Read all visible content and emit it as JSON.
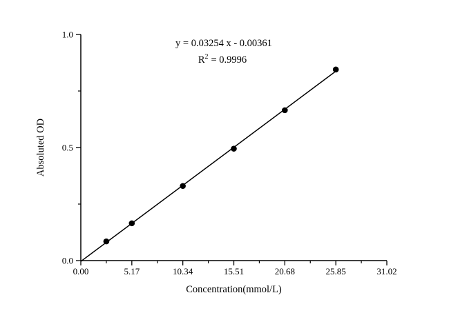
{
  "chart_data": {
    "type": "scatter",
    "title": "",
    "xlabel": "Concentration(mmol/L)",
    "ylabel": "Absoluted OD",
    "xlim": [
      0,
      31.02
    ],
    "ylim": [
      0,
      1.0
    ],
    "grid": false,
    "legend": "none",
    "x_ticks": [
      0.0,
      5.17,
      10.34,
      15.51,
      20.68,
      25.85,
      31.02
    ],
    "x_tick_labels": [
      "0.00",
      "5.17",
      "10.34",
      "15.51",
      "20.68",
      "25.85",
      "31.02"
    ],
    "x_minor_ticks": [
      2.585,
      7.755,
      12.925,
      18.095,
      23.265,
      28.435
    ],
    "y_ticks": [
      0.0,
      0.5,
      1.0
    ],
    "y_tick_labels": [
      "0.0",
      "0.5",
      "1.0"
    ],
    "y_minor_ticks": [
      0.25,
      0.75
    ],
    "series": [
      {
        "name": "standard-curve-points",
        "type": "scatter",
        "marker": "filled-circle",
        "x": [
          2.585,
          5.17,
          10.34,
          15.51,
          20.68,
          25.85
        ],
        "y": [
          0.085,
          0.165,
          0.33,
          0.495,
          0.665,
          0.845
        ]
      },
      {
        "name": "linear-fit",
        "type": "line",
        "slope": 0.03254,
        "intercept": -0.00361,
        "x_range": [
          0,
          25.85
        ]
      }
    ],
    "annotation": {
      "equation": "y = 0.03254 x - 0.00361",
      "r2_base": "R",
      "r2_sup": "2",
      "r2_tail": "= 0.9996"
    },
    "colors": {
      "background": "#ffffff",
      "axis": "#000000",
      "line": "#000000",
      "marker": "#000000",
      "text": "#000000"
    }
  }
}
